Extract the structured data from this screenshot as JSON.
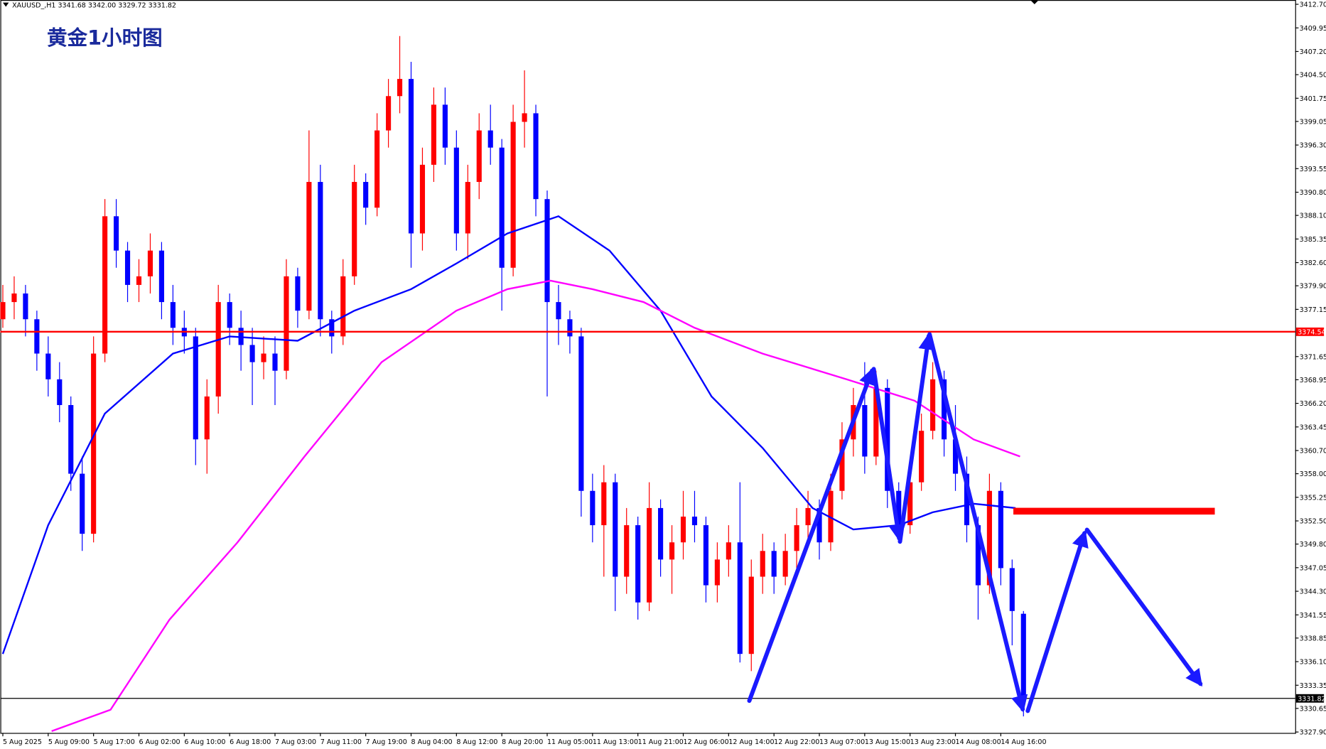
{
  "chart_data": {
    "type": "candlestick",
    "header": "XAUUSD_,H1  3341.68 3342.00 3329.72 3331.82",
    "title": "黄金1小时图",
    "up_color": "#ff0000",
    "down_color": "#0000ff",
    "xlim": [
      -0.22,
      113.96
    ],
    "ylim": [
      3327.4,
      3413.2
    ],
    "xticks": [
      {
        "value": 0,
        "label": "5 Aug 2025"
      },
      {
        "value": 4,
        "label": "5 Aug 09:00"
      },
      {
        "value": 8,
        "label": "5 Aug 17:00"
      },
      {
        "value": 12,
        "label": "6 Aug 02:00"
      },
      {
        "value": 16,
        "label": "6 Aug 10:00"
      },
      {
        "value": 20,
        "label": "6 Aug 18:00"
      },
      {
        "value": 24,
        "label": "7 Aug 03:00"
      },
      {
        "value": 28,
        "label": "7 Aug 11:00"
      },
      {
        "value": 32,
        "label": "7 Aug 19:00"
      },
      {
        "value": 36,
        "label": "8 Aug 04:00"
      },
      {
        "value": 40,
        "label": "8 Aug 12:00"
      },
      {
        "value": 44,
        "label": "8 Aug 20:00"
      },
      {
        "value": 48,
        "label": "11 Aug 05:00"
      },
      {
        "value": 52,
        "label": "11 Aug 13:00"
      },
      {
        "value": 56,
        "label": "11 Aug 21:00"
      },
      {
        "value": 60,
        "label": "12 Aug 06:00"
      },
      {
        "value": 64,
        "label": "12 Aug 14:00"
      },
      {
        "value": 68,
        "label": "12 Aug 22:00"
      },
      {
        "value": 72,
        "label": "13 Aug 07:00"
      },
      {
        "value": 76,
        "label": "13 Aug 15:00"
      },
      {
        "value": 80,
        "label": "13 Aug 23:00"
      },
      {
        "value": 84,
        "label": "14 Aug 08:00"
      },
      {
        "value": 88,
        "label": "14 Aug 16:00"
      }
    ],
    "yticks": [
      {
        "value": 3412.7,
        "label": "3412.70"
      },
      {
        "value": 3409.95,
        "label": "3409.95"
      },
      {
        "value": 3407.2,
        "label": "3407.20"
      },
      {
        "value": 3404.5,
        "label": "3404.50"
      },
      {
        "value": 3401.75,
        "label": "3401.75"
      },
      {
        "value": 3399.05,
        "label": "3399.05"
      },
      {
        "value": 3396.3,
        "label": "3396.30"
      },
      {
        "value": 3393.55,
        "label": "3393.55"
      },
      {
        "value": 3390.8,
        "label": "3390.80"
      },
      {
        "value": 3388.1,
        "label": "3388.10"
      },
      {
        "value": 3385.35,
        "label": "3385.35"
      },
      {
        "value": 3382.6,
        "label": "3382.60"
      },
      {
        "value": 3379.9,
        "label": "3379.90"
      },
      {
        "value": 3377.15,
        "label": "3377.15"
      },
      {
        "value": 3371.65,
        "label": "3371.65"
      },
      {
        "value": 3368.95,
        "label": "3368.95"
      },
      {
        "value": 3366.2,
        "label": "3366.20"
      },
      {
        "value": 3363.45,
        "label": "3363.45"
      },
      {
        "value": 3360.7,
        "label": "3360.70"
      },
      {
        "value": 3358,
        "label": "3358.00"
      },
      {
        "value": 3355.25,
        "label": "3355.25"
      },
      {
        "value": 3352.5,
        "label": "3352.50"
      },
      {
        "value": 3349.8,
        "label": "3349.80"
      },
      {
        "value": 3347.05,
        "label": "3347.05"
      },
      {
        "value": 3344.3,
        "label": "3344.30"
      },
      {
        "value": 3341.55,
        "label": "3341.55"
      },
      {
        "value": 3338.85,
        "label": "3338.85"
      },
      {
        "value": 3336.1,
        "label": "3336.10"
      },
      {
        "value": 3333.35,
        "label": "3333.35"
      },
      {
        "value": 3330.65,
        "label": "3330.65"
      },
      {
        "value": 3327.9,
        "label": "3327.90"
      }
    ],
    "open": [
      3376,
      3378,
      3379,
      3376,
      3372,
      3369,
      3366,
      3358,
      3351,
      3372,
      3388,
      3384,
      3380,
      3381,
      3384,
      3378,
      3375,
      3374,
      3362,
      3367,
      3378,
      3375,
      3373,
      3371,
      3372,
      3370,
      3381,
      3377,
      3392,
      3376,
      3374,
      3381,
      3392,
      3389,
      3398,
      3402,
      3404,
      3386,
      3394,
      3401,
      3396,
      3386,
      3392,
      3398,
      3396,
      3382,
      3399,
      3400,
      3390,
      3378,
      3376,
      3374,
      3356,
      3352,
      3357,
      3346,
      3352,
      3343,
      3354,
      3348,
      3350,
      3353,
      3352,
      3345,
      3348,
      3350,
      3337,
      3346,
      3349,
      3346,
      3349,
      3352,
      3354,
      3350,
      3356,
      3362,
      3366,
      3360,
      3368,
      3356,
      3352,
      3357,
      3363,
      3369,
      3362,
      3358,
      3352,
      3345,
      3356,
      3347,
      3341.68
    ],
    "high": [
      3380,
      3381,
      3380,
      3377,
      3374,
      3371,
      3367,
      3360,
      3374,
      3390,
      3390,
      3385,
      3383,
      3386,
      3385,
      3380,
      3377,
      3375,
      3369,
      3380,
      3379,
      3377,
      3375,
      3374,
      3374,
      3383,
      3382,
      3398,
      3394,
      3377,
      3383,
      3394,
      3393,
      3400,
      3404,
      3409,
      3406,
      3396,
      3403,
      3403,
      3398,
      3394,
      3400,
      3401,
      3397,
      3401,
      3405,
      3401,
      3391,
      3380,
      3377,
      3375,
      3358,
      3359,
      3358,
      3354,
      3353,
      3357,
      3355,
      3352,
      3356,
      3356,
      3353,
      3350,
      3352,
      3357,
      3348,
      3351,
      3350,
      3351,
      3354,
      3356,
      3355,
      3358,
      3364,
      3368,
      3371,
      3370,
      3369,
      3357,
      3359,
      3365,
      3371,
      3370,
      3366,
      3360,
      3353,
      3358,
      3357,
      3348,
      3342.0
    ],
    "low": [
      3375,
      3376,
      3374,
      3370,
      3367,
      3364,
      3356,
      3349,
      3350,
      3371,
      3382,
      3378,
      3378,
      3379,
      3376,
      3373,
      3372,
      3359,
      3358,
      3365,
      3373,
      3370,
      3366,
      3369,
      3366,
      3369,
      3375,
      3376,
      3374,
      3372,
      3373,
      3380,
      3387,
      3388,
      3396,
      3400,
      3382,
      3384,
      3392,
      3394,
      3384,
      3383,
      3390,
      3394,
      3377,
      3381,
      3396,
      3388,
      3367,
      3373,
      3372,
      3353,
      3350,
      3346,
      3342,
      3344,
      3341,
      3342,
      3346,
      3344,
      3348,
      3350,
      3343,
      3343,
      3346,
      3336,
      3335,
      3344,
      3344,
      3345,
      3347,
      3350,
      3348,
      3349,
      3355,
      3360,
      3358,
      3359,
      3354,
      3350,
      3351,
      3356,
      3362,
      3360,
      3356,
      3350,
      3341,
      3344,
      3345,
      3338,
      3329.72
    ],
    "close": [
      3378,
      3379,
      3376,
      3372,
      3369,
      3366,
      3358,
      3351,
      3372,
      3388,
      3384,
      3380,
      3381,
      3384,
      3378,
      3375,
      3374,
      3362,
      3367,
      3378,
      3375,
      3373,
      3371,
      3372,
      3370,
      3381,
      3377,
      3392,
      3376,
      3374,
      3381,
      3392,
      3389,
      3398,
      3402,
      3404,
      3386,
      3394,
      3401,
      3396,
      3386,
      3392,
      3398,
      3396,
      3382,
      3399,
      3400,
      3390,
      3378,
      3376,
      3374,
      3356,
      3352,
      3357,
      3346,
      3352,
      3343,
      3354,
      3348,
      3350,
      3353,
      3352,
      3345,
      3348,
      3350,
      3337,
      3346,
      3349,
      3346,
      3349,
      3352,
      3354,
      3350,
      3356,
      3362,
      3366,
      3360,
      3368,
      3356,
      3352,
      3357,
      3363,
      3369,
      3362,
      3358,
      3352,
      3345,
      3356,
      3347,
      3342,
      3331.82
    ],
    "lines": [
      {
        "color": "#0000ff",
        "x": [
          0,
          4,
          9,
          15,
          20,
          26,
          31,
          36,
          40,
          44.5,
          49,
          53.5,
          58,
          62.5,
          67,
          71.4,
          75,
          79,
          82,
          85.6,
          89.3
        ],
        "values": [
          3337,
          3352,
          3365,
          3372,
          3374,
          3373.5,
          3377,
          3379.5,
          3382.5,
          3386,
          3388,
          3384,
          3377,
          3367,
          3361,
          3354,
          3351.5,
          3352,
          3353.5,
          3354.5,
          3354
        ]
      },
      {
        "color": "#ff00ff",
        "x": [
          4.3,
          9.5,
          14.7,
          20.7,
          26.6,
          33.4,
          40,
          44.5,
          48.3,
          52,
          56.5,
          61,
          67,
          74.4,
          80.4,
          85.6,
          89.7
        ],
        "values": [
          3328,
          3330.5,
          3341,
          3350,
          3360,
          3371,
          3377,
          3379.5,
          3380.5,
          3379.5,
          3378,
          3375,
          3372,
          3369,
          3366.5,
          3362,
          3360
        ]
      }
    ],
    "hlines": [
      {
        "value": 3374.54,
        "label": "3374.54",
        "color": "#ff0000"
      },
      {
        "value": 3331.82,
        "label": "3331.82",
        "color": "#000000"
      }
    ]
  }
}
